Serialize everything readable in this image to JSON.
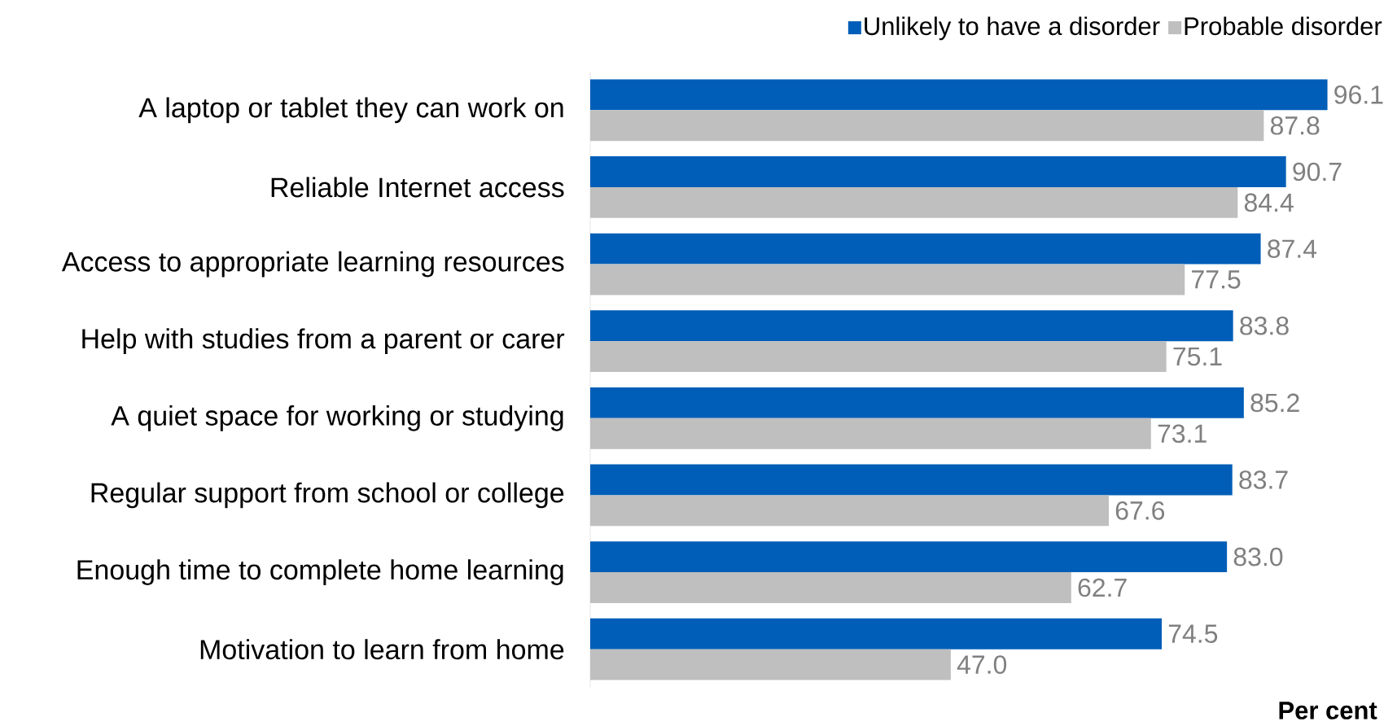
{
  "chart_data": {
    "type": "bar",
    "orientation": "horizontal",
    "xlabel": "Per cent",
    "categories": [
      "A laptop or tablet they can work on",
      "Reliable Internet access",
      "Access to appropriate learning resources",
      "Help with studies from a parent or carer",
      "A quiet space for working or studying",
      "Regular support from school or college",
      "Enough time to complete home learning",
      "Motivation to learn from home"
    ],
    "series": [
      {
        "name": "Unlikely to have a disorder",
        "color": "#005eb8",
        "values": [
          96.1,
          90.7,
          87.4,
          83.8,
          85.2,
          83.7,
          83.0,
          74.5
        ],
        "value_labels": [
          "96.1",
          "90.7",
          "87.4",
          "83.8",
          "85.2",
          "83.7",
          "83.0",
          "74.5"
        ]
      },
      {
        "name": "Probable disorder",
        "color": "#bfbfbf",
        "values": [
          87.8,
          84.4,
          77.5,
          75.1,
          73.1,
          67.6,
          62.7,
          47.0
        ],
        "value_labels": [
          "87.8",
          "84.4",
          "77.5",
          "75.1",
          "73.1",
          "67.6",
          "62.7",
          "47.0"
        ]
      }
    ],
    "legend": "top right"
  }
}
